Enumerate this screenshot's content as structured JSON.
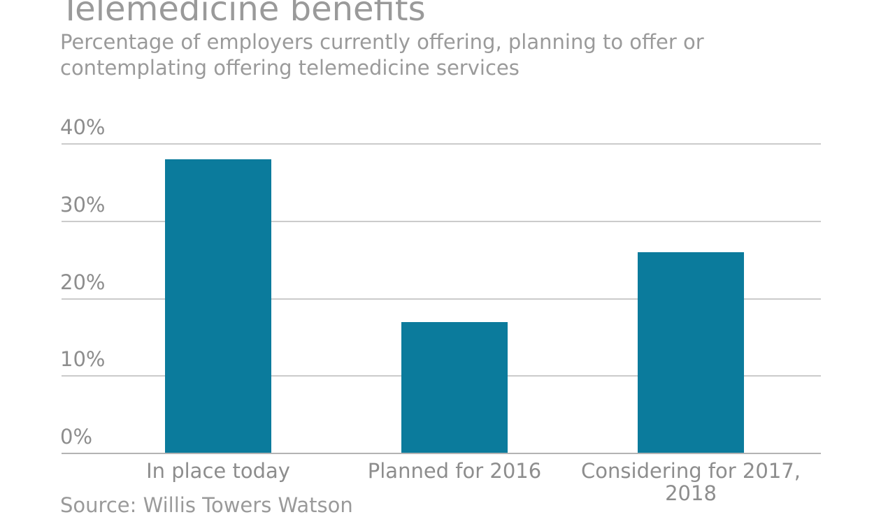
{
  "chart": {
    "title": "Telemedicine benefits",
    "subtitle": "Percentage of employers currently offering, planning to offer or contemplating offering telemedicine services",
    "source": "Source: Willis Towers Watson"
  },
  "chart_data": {
    "type": "bar",
    "title": "Telemedicine benefits",
    "subtitle": "Percentage of employers currently offering, planning to offer or contemplating offering telemedicine services",
    "source": "Source: Willis Towers Watson",
    "categories": [
      "In place today",
      "Planned for 2016",
      "Considering for 2017, 2018"
    ],
    "values": [
      38,
      17,
      26
    ],
    "unit": "%",
    "xlabel": "",
    "ylabel": "",
    "ylim": [
      0,
      40
    ],
    "yticks": [
      0,
      10,
      20,
      30,
      40
    ],
    "ytick_labels": [
      "0%",
      "10%",
      "20%",
      "30%",
      "40%"
    ],
    "grid": true,
    "legend": "none",
    "colors": {
      "bar": "#0b7b9c",
      "title_text": "#9a9a9a",
      "axis_text": "#8d8d8d",
      "gridline": "#cbcbcb",
      "axis_line": "#b3b3b3",
      "background": "#ffffff"
    }
  }
}
